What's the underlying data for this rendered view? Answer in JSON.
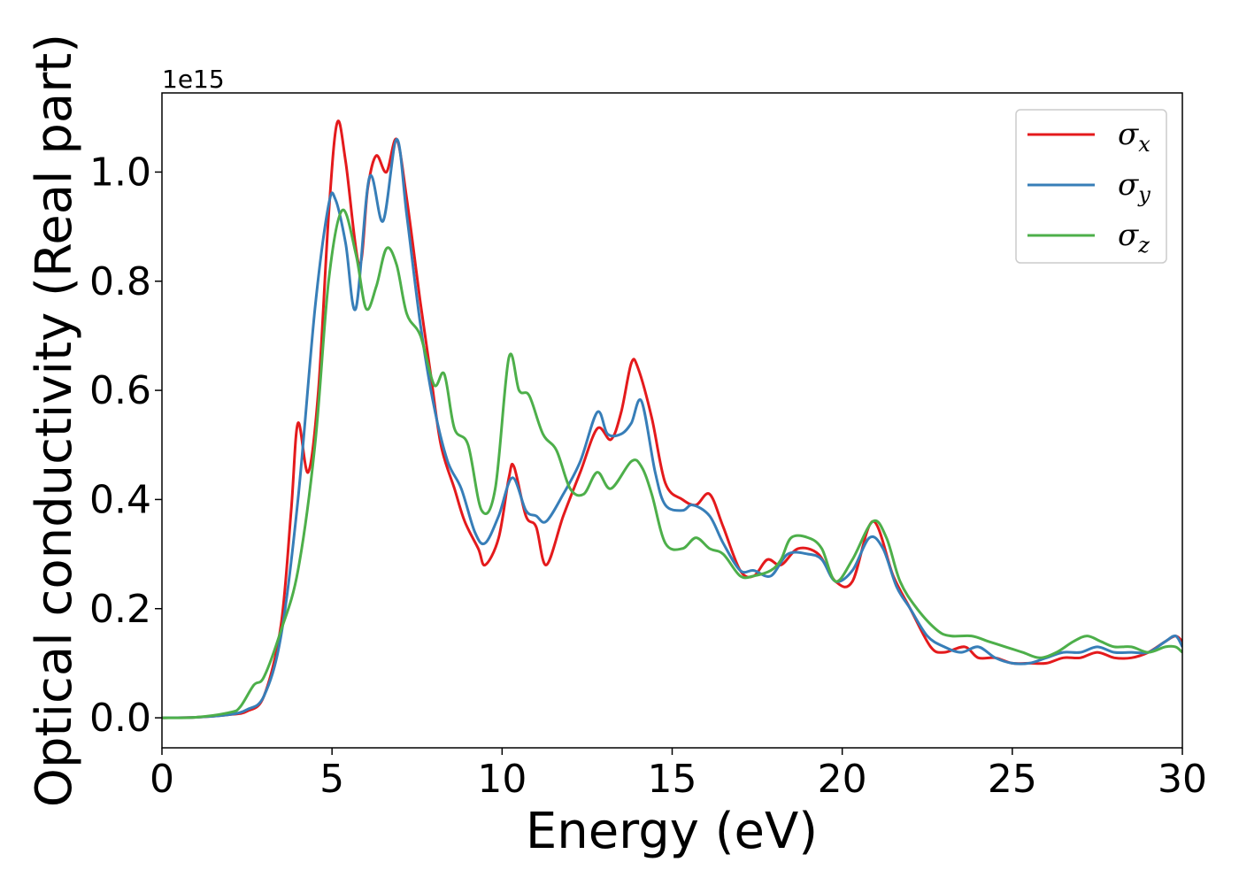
{
  "chart_data": {
    "type": "line",
    "title": "",
    "xlabel": "Energy (eV)",
    "ylabel": "Optical conductivity (Real part)",
    "y_offset_text": "1e15",
    "xlim": [
      0,
      30
    ],
    "ylim": [
      -0.055,
      1.145
    ],
    "x_ticks": [
      0,
      5,
      10,
      15,
      20,
      25,
      30
    ],
    "x_tick_labels": [
      "0",
      "5",
      "10",
      "15",
      "20",
      "25",
      "30"
    ],
    "y_ticks": [
      0.0,
      0.2,
      0.4,
      0.6,
      0.8,
      1.0
    ],
    "y_tick_labels": [
      "0.0",
      "0.2",
      "0.4",
      "0.6",
      "0.8",
      "1.0"
    ],
    "grid": false,
    "legend_position": "top-right",
    "series": [
      {
        "name": "σx",
        "symbol": "σ",
        "subscript": "x",
        "color": "#e41a1c",
        "points": [
          [
            0,
            0
          ],
          [
            1,
            0.001
          ],
          [
            2,
            0.006
          ],
          [
            2.5,
            0.012
          ],
          [
            3,
            0.04
          ],
          [
            3.5,
            0.17
          ],
          [
            3.8,
            0.38
          ],
          [
            4.0,
            0.54
          ],
          [
            4.3,
            0.45
          ],
          [
            4.6,
            0.6
          ],
          [
            4.9,
            0.92
          ],
          [
            5.15,
            1.09
          ],
          [
            5.4,
            1.02
          ],
          [
            5.8,
            0.83
          ],
          [
            6.05,
            0.97
          ],
          [
            6.3,
            1.03
          ],
          [
            6.6,
            1.0
          ],
          [
            6.9,
            1.06
          ],
          [
            7.2,
            0.95
          ],
          [
            7.6,
            0.76
          ],
          [
            7.9,
            0.63
          ],
          [
            8.2,
            0.5
          ],
          [
            8.6,
            0.42
          ],
          [
            8.9,
            0.36
          ],
          [
            9.3,
            0.31
          ],
          [
            9.5,
            0.28
          ],
          [
            9.9,
            0.33
          ],
          [
            10.2,
            0.44
          ],
          [
            10.35,
            0.46
          ],
          [
            10.7,
            0.37
          ],
          [
            11.0,
            0.35
          ],
          [
            11.3,
            0.28
          ],
          [
            11.8,
            0.37
          ],
          [
            12.3,
            0.45
          ],
          [
            12.8,
            0.53
          ],
          [
            13.2,
            0.51
          ],
          [
            13.5,
            0.56
          ],
          [
            13.8,
            0.65
          ],
          [
            14.0,
            0.64
          ],
          [
            14.4,
            0.55
          ],
          [
            14.8,
            0.43
          ],
          [
            15.3,
            0.4
          ],
          [
            15.7,
            0.39
          ],
          [
            16.1,
            0.41
          ],
          [
            16.5,
            0.35
          ],
          [
            17.0,
            0.27
          ],
          [
            17.4,
            0.26
          ],
          [
            17.8,
            0.29
          ],
          [
            18.2,
            0.28
          ],
          [
            18.7,
            0.31
          ],
          [
            19.3,
            0.3
          ],
          [
            19.8,
            0.25
          ],
          [
            20.3,
            0.25
          ],
          [
            20.9,
            0.36
          ],
          [
            21.5,
            0.26
          ],
          [
            22.0,
            0.2
          ],
          [
            22.6,
            0.13
          ],
          [
            23.0,
            0.12
          ],
          [
            23.6,
            0.13
          ],
          [
            24.0,
            0.11
          ],
          [
            24.5,
            0.11
          ],
          [
            25.0,
            0.1
          ],
          [
            25.5,
            0.1
          ],
          [
            26.0,
            0.1
          ],
          [
            26.5,
            0.11
          ],
          [
            27.0,
            0.11
          ],
          [
            27.5,
            0.12
          ],
          [
            28.0,
            0.11
          ],
          [
            28.5,
            0.11
          ],
          [
            29.0,
            0.12
          ],
          [
            29.5,
            0.14
          ],
          [
            29.8,
            0.15
          ],
          [
            30.0,
            0.14
          ]
        ]
      },
      {
        "name": "σy",
        "symbol": "σ",
        "subscript": "y",
        "color": "#377eb8",
        "points": [
          [
            0,
            0
          ],
          [
            1,
            0.001
          ],
          [
            2,
            0.006
          ],
          [
            2.5,
            0.015
          ],
          [
            3,
            0.04
          ],
          [
            3.5,
            0.15
          ],
          [
            4.0,
            0.4
          ],
          [
            4.5,
            0.75
          ],
          [
            4.9,
            0.94
          ],
          [
            5.1,
            0.95
          ],
          [
            5.4,
            0.87
          ],
          [
            5.7,
            0.75
          ],
          [
            6.1,
            0.99
          ],
          [
            6.5,
            0.91
          ],
          [
            6.9,
            1.06
          ],
          [
            7.2,
            0.92
          ],
          [
            7.6,
            0.72
          ],
          [
            8.0,
            0.57
          ],
          [
            8.4,
            0.47
          ],
          [
            8.8,
            0.42
          ],
          [
            9.2,
            0.34
          ],
          [
            9.5,
            0.32
          ],
          [
            9.9,
            0.37
          ],
          [
            10.3,
            0.44
          ],
          [
            10.7,
            0.38
          ],
          [
            11.0,
            0.37
          ],
          [
            11.3,
            0.36
          ],
          [
            11.8,
            0.41
          ],
          [
            12.3,
            0.47
          ],
          [
            12.8,
            0.56
          ],
          [
            13.1,
            0.52
          ],
          [
            13.5,
            0.52
          ],
          [
            13.8,
            0.54
          ],
          [
            14.1,
            0.58
          ],
          [
            14.5,
            0.45
          ],
          [
            14.8,
            0.39
          ],
          [
            15.3,
            0.38
          ],
          [
            15.6,
            0.39
          ],
          [
            16.1,
            0.37
          ],
          [
            16.5,
            0.32
          ],
          [
            17.0,
            0.27
          ],
          [
            17.4,
            0.27
          ],
          [
            17.9,
            0.26
          ],
          [
            18.4,
            0.3
          ],
          [
            19.0,
            0.3
          ],
          [
            19.4,
            0.29
          ],
          [
            19.8,
            0.25
          ],
          [
            20.3,
            0.27
          ],
          [
            20.8,
            0.33
          ],
          [
            21.2,
            0.31
          ],
          [
            21.6,
            0.24
          ],
          [
            22.0,
            0.2
          ],
          [
            22.5,
            0.15
          ],
          [
            23.0,
            0.13
          ],
          [
            23.5,
            0.12
          ],
          [
            24.0,
            0.13
          ],
          [
            24.5,
            0.11
          ],
          [
            25.0,
            0.1
          ],
          [
            25.5,
            0.1
          ],
          [
            26.0,
            0.11
          ],
          [
            26.5,
            0.12
          ],
          [
            27.0,
            0.12
          ],
          [
            27.5,
            0.13
          ],
          [
            28.0,
            0.12
          ],
          [
            28.5,
            0.12
          ],
          [
            29.0,
            0.12
          ],
          [
            29.5,
            0.14
          ],
          [
            29.8,
            0.15
          ],
          [
            30.0,
            0.13
          ]
        ]
      },
      {
        "name": "σz",
        "symbol": "σ",
        "subscript": "z",
        "color": "#4daf4a",
        "points": [
          [
            0,
            0
          ],
          [
            1,
            0.001
          ],
          [
            2,
            0.01
          ],
          [
            2.3,
            0.02
          ],
          [
            2.7,
            0.06
          ],
          [
            3.0,
            0.075
          ],
          [
            3.5,
            0.16
          ],
          [
            4.0,
            0.27
          ],
          [
            4.5,
            0.5
          ],
          [
            4.9,
            0.8
          ],
          [
            5.3,
            0.93
          ],
          [
            5.7,
            0.85
          ],
          [
            6.0,
            0.75
          ],
          [
            6.3,
            0.79
          ],
          [
            6.6,
            0.86
          ],
          [
            6.9,
            0.83
          ],
          [
            7.2,
            0.74
          ],
          [
            7.6,
            0.7
          ],
          [
            8.0,
            0.61
          ],
          [
            8.3,
            0.63
          ],
          [
            8.6,
            0.53
          ],
          [
            9.0,
            0.5
          ],
          [
            9.4,
            0.38
          ],
          [
            9.8,
            0.42
          ],
          [
            10.2,
            0.66
          ],
          [
            10.5,
            0.6
          ],
          [
            10.8,
            0.59
          ],
          [
            11.2,
            0.52
          ],
          [
            11.6,
            0.49
          ],
          [
            12.0,
            0.42
          ],
          [
            12.4,
            0.41
          ],
          [
            12.8,
            0.45
          ],
          [
            13.2,
            0.42
          ],
          [
            13.8,
            0.47
          ],
          [
            14.1,
            0.46
          ],
          [
            14.4,
            0.41
          ],
          [
            14.8,
            0.32
          ],
          [
            15.3,
            0.31
          ],
          [
            15.7,
            0.33
          ],
          [
            16.1,
            0.31
          ],
          [
            16.5,
            0.3
          ],
          [
            17.0,
            0.26
          ],
          [
            17.4,
            0.26
          ],
          [
            17.9,
            0.27
          ],
          [
            18.2,
            0.29
          ],
          [
            18.5,
            0.33
          ],
          [
            19.0,
            0.33
          ],
          [
            19.4,
            0.31
          ],
          [
            19.8,
            0.25
          ],
          [
            20.3,
            0.29
          ],
          [
            20.9,
            0.36
          ],
          [
            21.3,
            0.33
          ],
          [
            21.7,
            0.25
          ],
          [
            22.2,
            0.2
          ],
          [
            22.8,
            0.16
          ],
          [
            23.2,
            0.15
          ],
          [
            23.8,
            0.15
          ],
          [
            24.3,
            0.14
          ],
          [
            24.8,
            0.13
          ],
          [
            25.3,
            0.12
          ],
          [
            25.8,
            0.11
          ],
          [
            26.3,
            0.12
          ],
          [
            26.8,
            0.14
          ],
          [
            27.2,
            0.15
          ],
          [
            27.6,
            0.14
          ],
          [
            28.0,
            0.13
          ],
          [
            28.5,
            0.13
          ],
          [
            29.0,
            0.12
          ],
          [
            29.5,
            0.13
          ],
          [
            29.8,
            0.13
          ],
          [
            30.0,
            0.12
          ]
        ]
      }
    ]
  }
}
